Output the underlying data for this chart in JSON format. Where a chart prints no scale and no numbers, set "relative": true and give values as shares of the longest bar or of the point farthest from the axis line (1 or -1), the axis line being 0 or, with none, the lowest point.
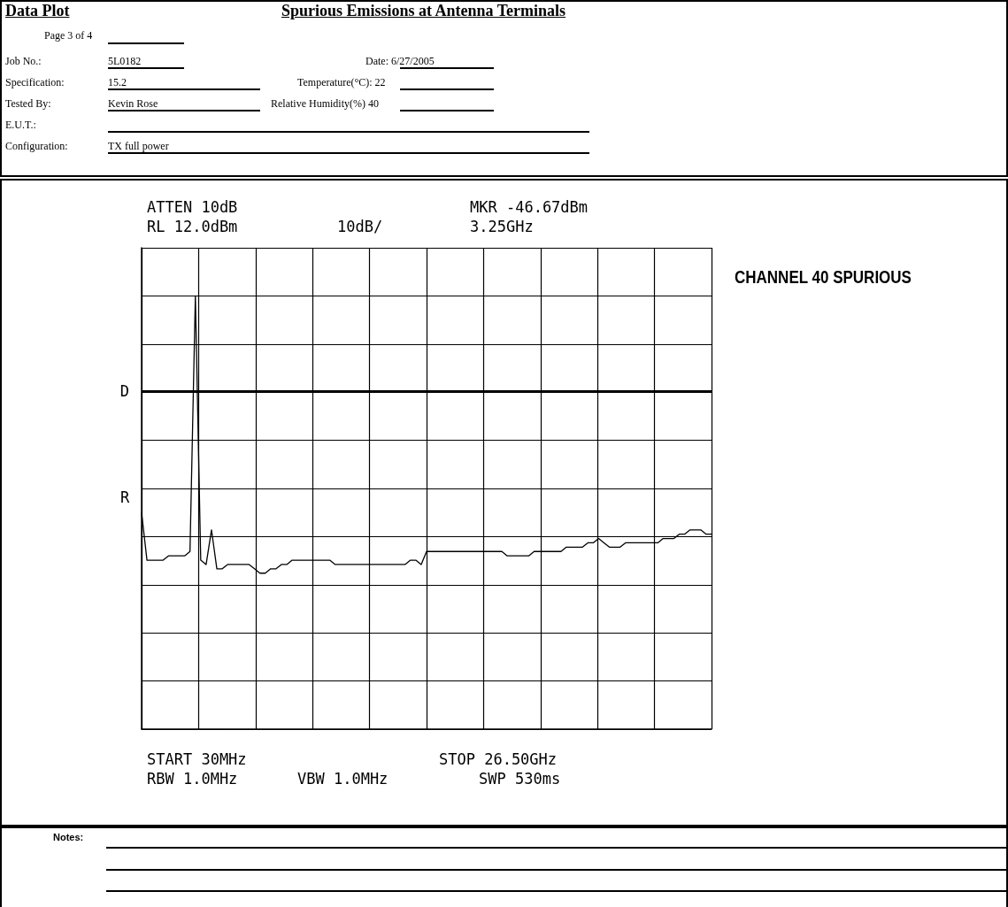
{
  "chart_data": {
    "type": "line",
    "title": "Spurious Emissions at Antenna Terminals",
    "annotations": [
      "Data Plot",
      "Page 3 of 4",
      "Job No.:",
      "5L0182",
      "Date: 6/27/2005",
      "Specification:",
      "15.2",
      "Temperature(°C): 22",
      "Tested By:",
      "Kevin Rose",
      "Relative Humidity(%) 40",
      "E.U.T.:",
      "Configuration:",
      "TX full power",
      "ATTEN 10dB",
      "RL 12.0dBm",
      "10dB/",
      "MKR -46.67dBm",
      "3.25GHz",
      "CHANNEL 40 SPURIOUS",
      "R",
      "START 30MHz",
      "STOP 26.50GHz",
      "RBW 1.0MHz",
      "VBW 1.0MHz",
      "SWP 530ms",
      "Notes:"
    ],
    "relative": true,
    "grid": true,
    "marker": "none",
    "categories": [
      null,
      null,
      null,
      null,
      null,
      null,
      null,
      null,
      null,
      null,
      null,
      null,
      null,
      null,
      null,
      null,
      null,
      null,
      null,
      null,
      null,
      null,
      null,
      null,
      null,
      null,
      null,
      null,
      null,
      null,
      null,
      null,
      null,
      null,
      null,
      null,
      null,
      null,
      null,
      null,
      null,
      null,
      null,
      null,
      null,
      null,
      null,
      null,
      null,
      null,
      null,
      null,
      null,
      null,
      null,
      null,
      null,
      null,
      null,
      null,
      null,
      null,
      null,
      null,
      null,
      null,
      null,
      null,
      null,
      null,
      null,
      null,
      null,
      null,
      null,
      null,
      null,
      null,
      null,
      null,
      null,
      null,
      null,
      null,
      null,
      null,
      null,
      null,
      null,
      null,
      null,
      null,
      null,
      null,
      null,
      null,
      null,
      null,
      null,
      null,
      null,
      null,
      null,
      null,
      null,
      null,
      null
    ],
    "ref_lines": [
      {
        "axis": "y",
        "value": 0.78,
        "label": "D",
        "color": "#000000"
      }
    ],
    "series": [
      {
        "color": "#000000",
        "values": [
          0.5,
          0.39,
          0.39,
          0.39,
          0.39,
          0.4,
          0.4,
          0.4,
          0.4,
          0.41,
          1,
          0.39,
          0.38,
          0.46,
          0.37,
          0.37,
          0.38,
          0.38,
          0.38,
          0.38,
          0.38,
          0.37,
          0.36,
          0.36,
          0.37,
          0.37,
          0.38,
          0.38,
          0.39,
          0.39,
          0.39,
          0.39,
          0.39,
          0.39,
          0.39,
          0.39,
          0.38,
          0.38,
          0.38,
          0.38,
          0.38,
          0.38,
          0.38,
          0.38,
          0.38,
          0.38,
          0.38,
          0.38,
          0.38,
          0.38,
          0.39,
          0.39,
          0.38,
          0.41,
          0.41,
          0.41,
          0.41,
          0.41,
          0.41,
          0.41,
          0.41,
          0.41,
          0.41,
          0.41,
          0.41,
          0.41,
          0.41,
          0.41,
          0.4,
          0.4,
          0.4,
          0.4,
          0.4,
          0.41,
          0.41,
          0.41,
          0.41,
          0.41,
          0.41,
          0.42,
          0.42,
          0.42,
          0.42,
          0.43,
          0.43,
          0.44,
          0.43,
          0.42,
          0.42,
          0.42,
          0.43,
          0.43,
          0.43,
          0.43,
          0.43,
          0.43,
          0.43,
          0.44,
          0.44,
          0.44,
          0.45,
          0.45,
          0.46,
          0.46,
          0.46,
          0.45,
          0.45
        ]
      }
    ]
  }
}
